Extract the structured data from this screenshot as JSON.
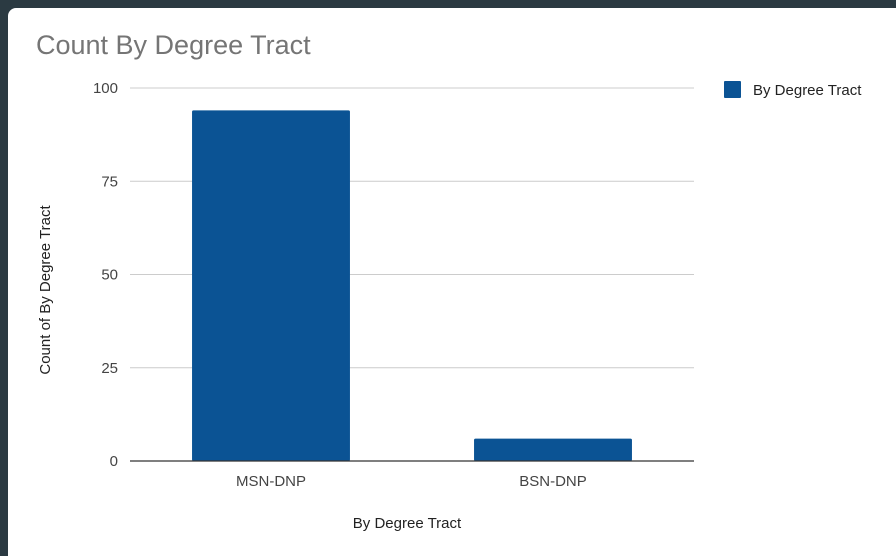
{
  "chart_data": {
    "type": "bar",
    "title": "Count By Degree Tract",
    "xlabel": "By Degree Tract",
    "ylabel": "Count of By Degree Tract",
    "categories": [
      "MSN-DNP",
      "BSN-DNP"
    ],
    "series": [
      {
        "name": "By Degree Tract",
        "values": [
          94,
          6
        ]
      }
    ],
    "ylim": [
      0,
      100
    ],
    "yticks": [
      "0",
      "25",
      "50",
      "75",
      "100"
    ],
    "grid": true,
    "legend_position": "top-right"
  },
  "colors": {
    "bar": "#0b5394",
    "gridline": "#cccccc",
    "baseline": "#333333"
  }
}
